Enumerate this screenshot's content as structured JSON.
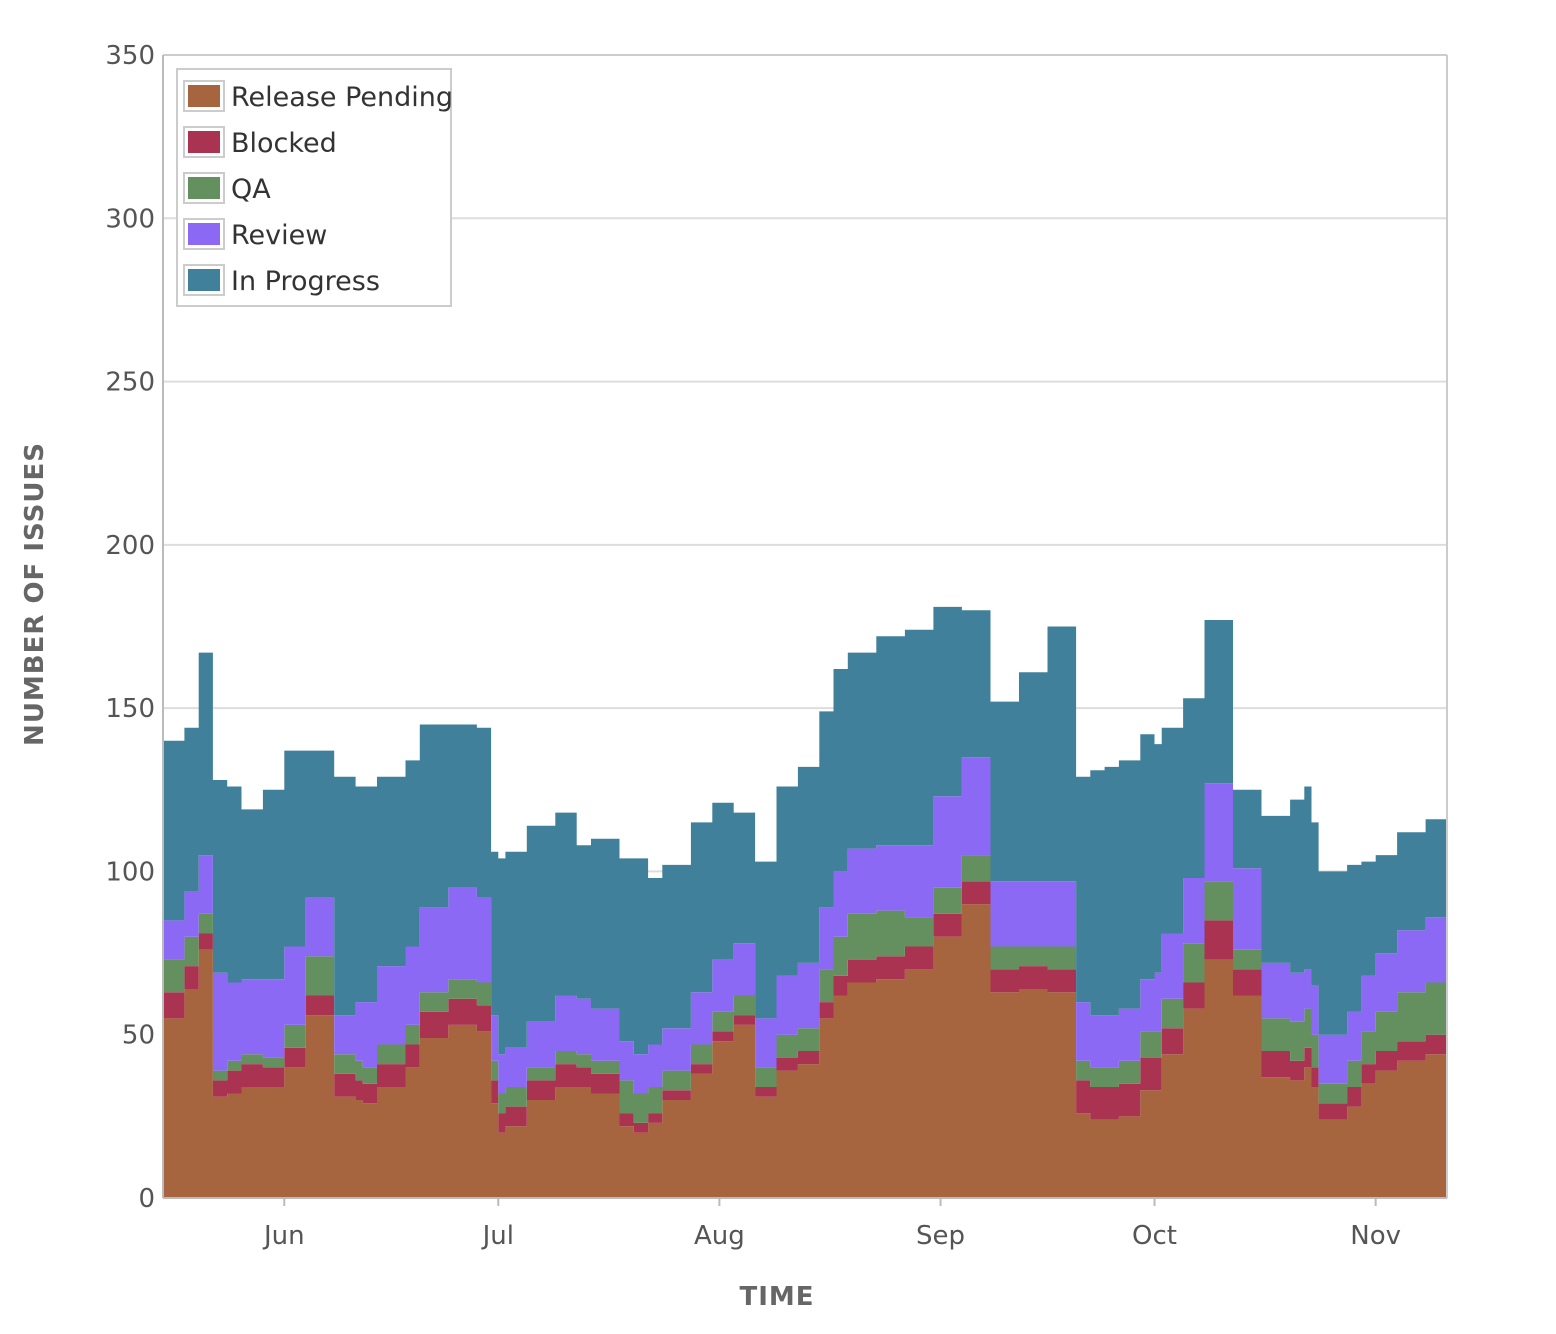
{
  "chart_data": {
    "type": "area",
    "stacked": true,
    "title": "",
    "xlabel": "TIME",
    "ylabel": "NUMBER OF ISSUES",
    "ylim": [
      0,
      350
    ],
    "yticks": [
      0,
      50,
      100,
      150,
      200,
      250,
      300,
      350
    ],
    "x_range_days": [
      0,
      180
    ],
    "xticks": [
      {
        "label": "Jun",
        "day": 17
      },
      {
        "label": "Jul",
        "day": 47
      },
      {
        "label": "Aug",
        "day": 78
      },
      {
        "label": "Sep",
        "day": 109
      },
      {
        "label": "Oct",
        "day": 139
      },
      {
        "label": "Nov",
        "day": 170
      }
    ],
    "grid": true,
    "legend_position": "top-left",
    "x": [
      0,
      3,
      5,
      7,
      9,
      11,
      14,
      17,
      20,
      24,
      27,
      28,
      30,
      34,
      36,
      40,
      44,
      46,
      47,
      48,
      51,
      55,
      58,
      60,
      64,
      66,
      68,
      70,
      74,
      77,
      80,
      83,
      86,
      89,
      92,
      94,
      96,
      100,
      104,
      108,
      112,
      116,
      120,
      124,
      128,
      130,
      131,
      132,
      134,
      137,
      139,
      140,
      143,
      146,
      150,
      154,
      158,
      160,
      161,
      162,
      166,
      168,
      170,
      173,
      177,
      180
    ],
    "series": [
      {
        "name": "Release Pending",
        "color": "#a6653f",
        "values": [
          55,
          64,
          76,
          31,
          32,
          34,
          34,
          40,
          56,
          31,
          30,
          29,
          34,
          40,
          49,
          53,
          51,
          29,
          20,
          22,
          30,
          34,
          34,
          32,
          22,
          20,
          23,
          30,
          38,
          48,
          53,
          31,
          39,
          41,
          55,
          62,
          66,
          67,
          70,
          80,
          90,
          63,
          64,
          63,
          26,
          24,
          24,
          24,
          25,
          33,
          33,
          44,
          58,
          73,
          62,
          37,
          36,
          40,
          34,
          24,
          28,
          35,
          39,
          42,
          44,
          47
        ]
      },
      {
        "name": "Blocked",
        "color": "#a93350",
        "values": [
          8,
          7,
          5,
          5,
          7,
          7,
          6,
          6,
          6,
          7,
          6,
          6,
          7,
          7,
          8,
          8,
          8,
          7,
          6,
          6,
          6,
          7,
          6,
          6,
          4,
          3,
          3,
          3,
          3,
          3,
          3,
          3,
          4,
          4,
          5,
          6,
          7,
          7,
          7,
          7,
          7,
          7,
          7,
          7,
          10,
          10,
          10,
          10,
          10,
          10,
          10,
          8,
          8,
          12,
          8,
          8,
          6,
          6,
          6,
          5,
          6,
          6,
          6,
          6,
          6,
          7
        ]
      },
      {
        "name": "QA",
        "color": "#63905e",
        "values": [
          10,
          9,
          6,
          3,
          3,
          3,
          3,
          7,
          12,
          6,
          6,
          5,
          6,
          6,
          6,
          6,
          7,
          6,
          6,
          6,
          4,
          4,
          4,
          4,
          10,
          9,
          8,
          6,
          6,
          6,
          6,
          6,
          7,
          7,
          10,
          12,
          14,
          14,
          9,
          8,
          8,
          7,
          6,
          7,
          6,
          6,
          6,
          6,
          7,
          8,
          8,
          9,
          12,
          12,
          6,
          10,
          12,
          12,
          10,
          6,
          8,
          10,
          12,
          15,
          16,
          17
        ]
      },
      {
        "name": "Review",
        "color": "#8c69f4",
        "values": [
          12,
          14,
          18,
          30,
          24,
          23,
          24,
          24,
          18,
          12,
          18,
          20,
          24,
          24,
          26,
          28,
          26,
          14,
          12,
          12,
          14,
          17,
          17,
          16,
          12,
          12,
          13,
          13,
          16,
          16,
          16,
          15,
          18,
          20,
          19,
          20,
          20,
          20,
          22,
          28,
          30,
          20,
          20,
          20,
          18,
          16,
          16,
          16,
          16,
          16,
          18,
          20,
          20,
          30,
          25,
          17,
          15,
          12,
          15,
          15,
          15,
          17,
          18,
          19,
          20,
          25
        ]
      },
      {
        "name": "In Progress",
        "color": "#41809b",
        "values": [
          55,
          50,
          62,
          59,
          60,
          52,
          58,
          60,
          45,
          73,
          66,
          66,
          58,
          57,
          56,
          50,
          52,
          50,
          60,
          60,
          60,
          56,
          47,
          52,
          56,
          60,
          51,
          50,
          52,
          48,
          40,
          48,
          58,
          60,
          60,
          62,
          60,
          64,
          66,
          58,
          45,
          55,
          64,
          78,
          69,
          75,
          75,
          76,
          76,
          75,
          70,
          63,
          55,
          50,
          24,
          45,
          53,
          56,
          50,
          50,
          45,
          35,
          30,
          30,
          30,
          45
        ]
      }
    ]
  }
}
